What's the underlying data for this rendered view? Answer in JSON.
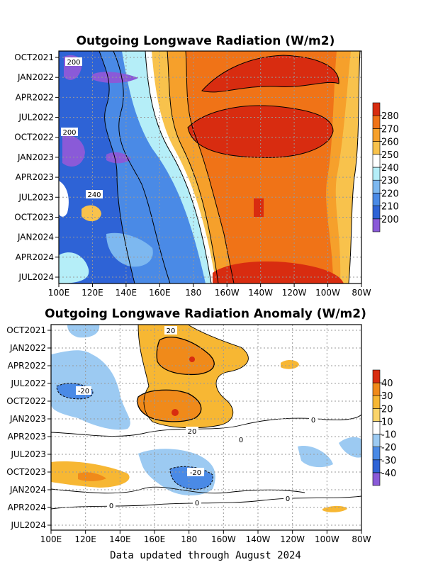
{
  "footer": "Data updated through August 2024",
  "chart_data": [
    {
      "type": "heatmap",
      "title": "Outgoing Longwave Radiation (W/m2)",
      "xlabel": "",
      "ylabel": "",
      "x_ticks": [
        "100E",
        "120E",
        "140E",
        "160E",
        "180",
        "160W",
        "140W",
        "120W",
        "100W",
        "80W"
      ],
      "y_ticks": [
        "OCT2021",
        "JAN2022",
        "APR2022",
        "JUL2022",
        "OCT2022",
        "JAN2023",
        "APR2023",
        "JUL2023",
        "OCT2023",
        "JAN2024",
        "APR2024",
        "JUL2024"
      ],
      "x_range": [
        "100E",
        "80W"
      ],
      "y_range": [
        "OCT2021",
        "AUG2024"
      ],
      "grid": true,
      "colorbar": {
        "levels": [
          200,
          210,
          220,
          230,
          240,
          250,
          260,
          270,
          280
        ],
        "colors": [
          "#8a5ad8",
          "#2e63d6",
          "#4a8ae6",
          "#7db8f0",
          "#b5eef8",
          "#ffffff",
          "#f8c24c",
          "#f6a02b",
          "#f07317",
          "#d82c10"
        ]
      },
      "contour_labels": [
        "200",
        "200",
        "240"
      ],
      "description": "Dry (high OLR, 250-285) over 180-100W; convective (low OLR, 195-230) over 100E-160E"
    },
    {
      "type": "heatmap",
      "title": "Outgoing Longwave Radiation Anomaly (W/m2)",
      "xlabel": "",
      "ylabel": "",
      "x_ticks": [
        "100E",
        "120E",
        "140E",
        "160E",
        "180",
        "160W",
        "140W",
        "120W",
        "100W",
        "80W"
      ],
      "y_ticks": [
        "OCT2021",
        "JAN2022",
        "APR2022",
        "JUL2022",
        "OCT2022",
        "JAN2023",
        "APR2023",
        "JUL2023",
        "OCT2023",
        "JAN2024",
        "APR2024",
        "JUL2024"
      ],
      "x_range": [
        "100E",
        "80W"
      ],
      "y_range": [
        "OCT2021",
        "AUG2024"
      ],
      "grid": true,
      "colorbar": {
        "levels": [
          -40,
          -30,
          -20,
          -10,
          10,
          20,
          30,
          40
        ],
        "colors": [
          "#8a5ad8",
          "#2e63d6",
          "#4a8ae6",
          "#9ccaf2",
          "#ffffff",
          "#fbd46a",
          "#f7b733",
          "#f08a1a",
          "#d82c10"
        ]
      },
      "contour_labels": [
        "20",
        "-20",
        "20",
        "0",
        "0",
        "-20",
        "0",
        "0",
        "0"
      ],
      "description": "Positive anomalies (+20 to +30) near 160E-160W during 2022-early 2023; negative anomalies (-10 to -20) near 120E-140E in 2022 and near 170E-180 in late 2023"
    }
  ]
}
